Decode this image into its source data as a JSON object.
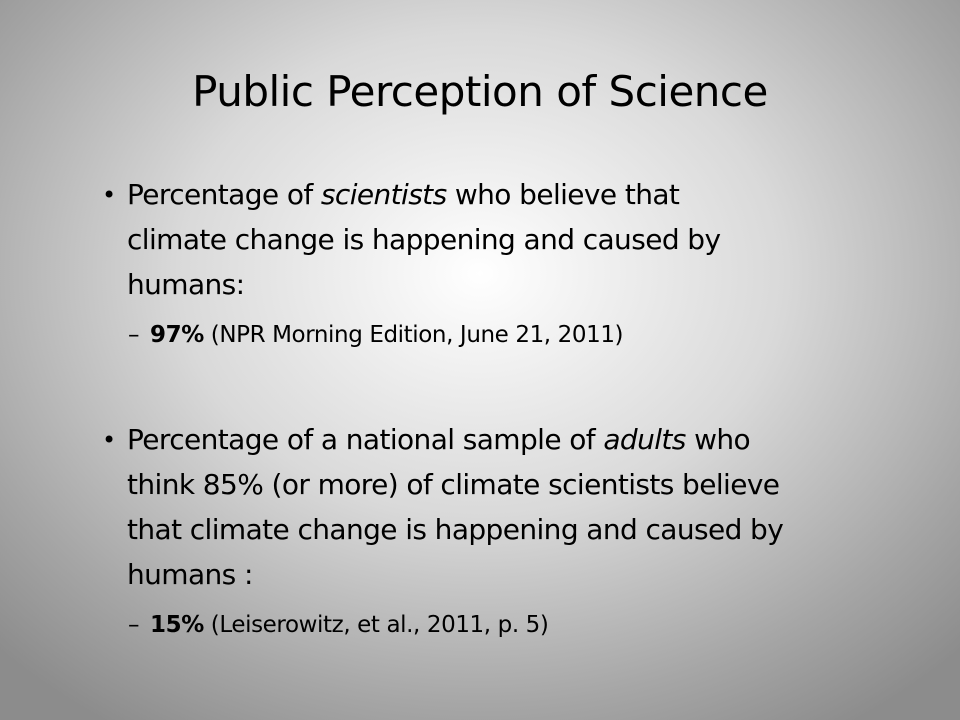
{
  "header": {
    "title": "Public Perception of Science"
  },
  "bullets": [
    {
      "marker": "•",
      "lines": [
        [
          {
            "text": "Percentage of "
          },
          {
            "text": "scientists",
            "italic": true
          },
          {
            "text": " who believe that"
          }
        ],
        [
          {
            "text": "climate change is happening and caused by"
          }
        ],
        [
          {
            "text": "humans:"
          }
        ]
      ],
      "sub": {
        "marker": "–",
        "runs": [
          {
            "text": "97%",
            "bold": true
          },
          {
            "text": " (NPR Morning Edition, June 21, 2011)"
          }
        ]
      }
    },
    {
      "marker": "•",
      "lines": [
        [
          {
            "text": "Percentage of a national sample of "
          },
          {
            "text": "adults",
            "italic": true
          },
          {
            "text": " who"
          }
        ],
        [
          {
            "text": "think 85% (or more) of climate scientists believe"
          }
        ],
        [
          {
            "text": "that climate change is happening and caused by"
          }
        ],
        [
          {
            "text": "humans :"
          }
        ]
      ],
      "sub": {
        "marker": "–",
        "runs": [
          {
            "text": "15%",
            "bold": true
          },
          {
            "text": " (Leiserowitz, et al., 2011, p. 5)"
          }
        ]
      }
    }
  ]
}
